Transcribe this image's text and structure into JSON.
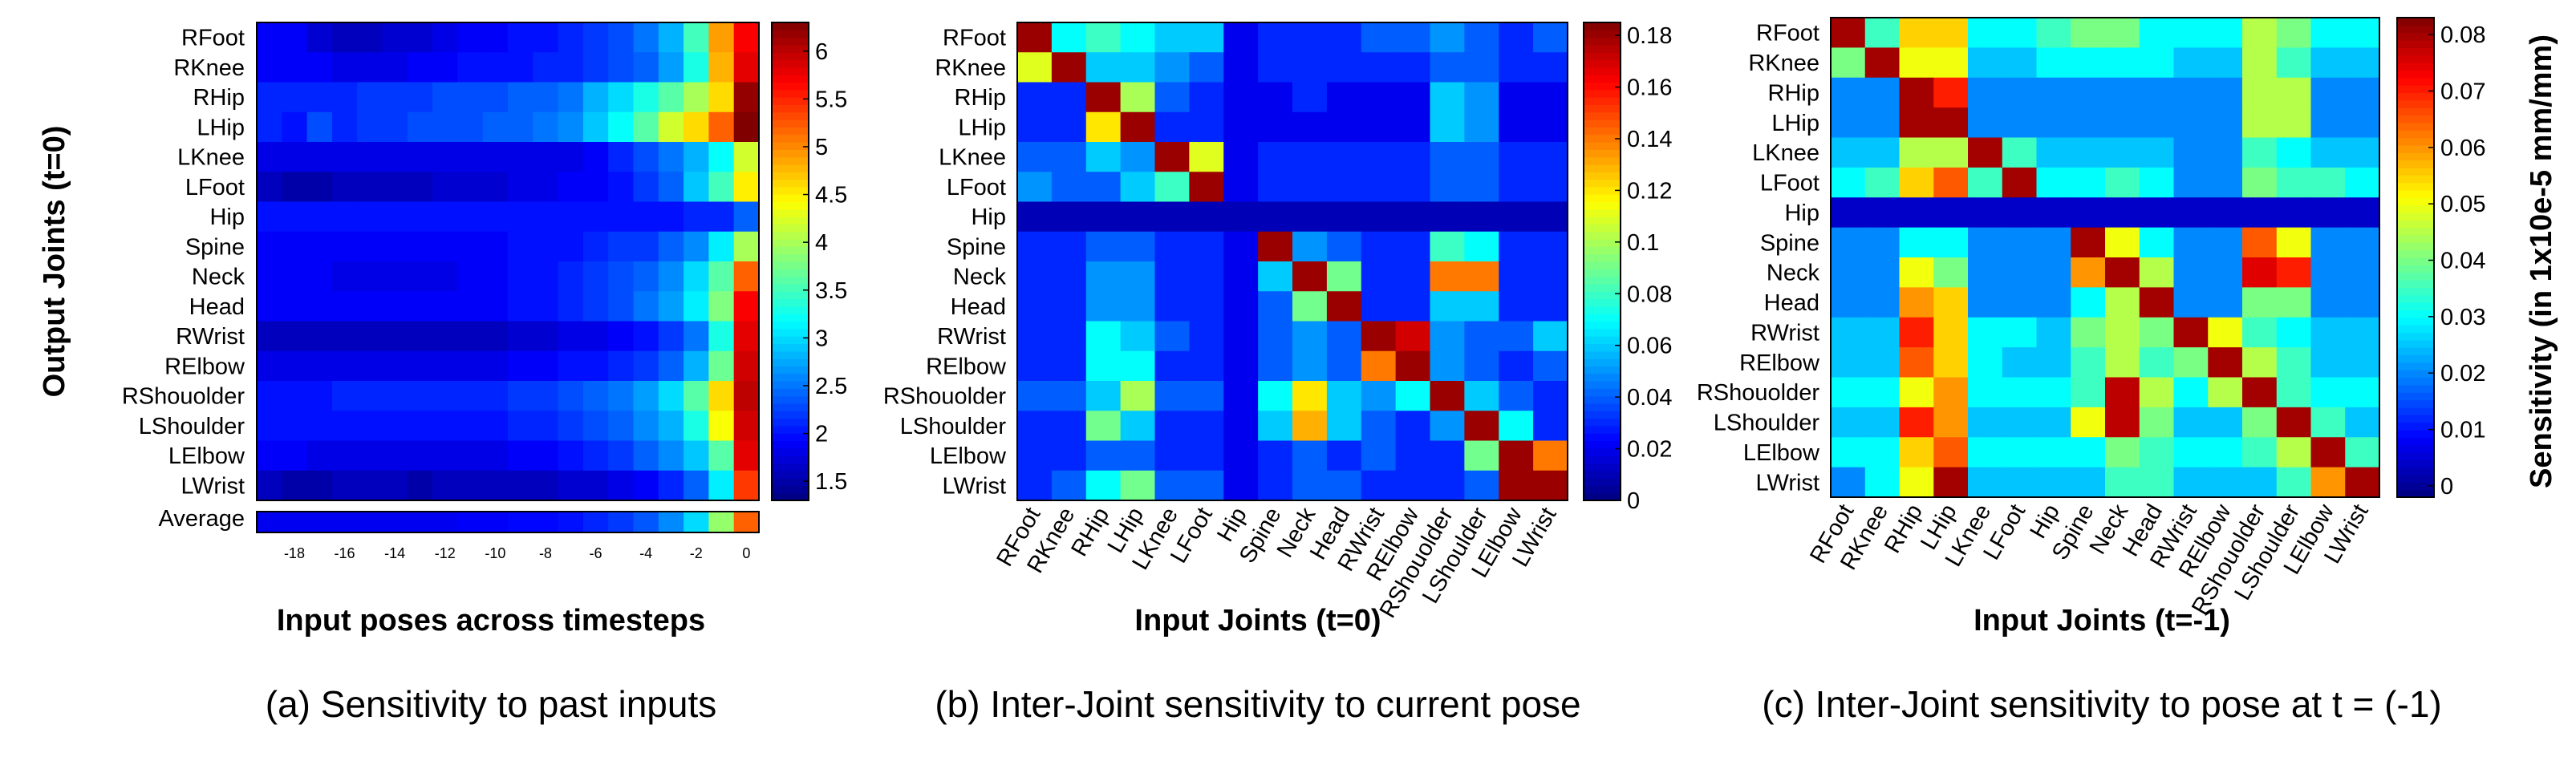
{
  "chart_data": [
    {
      "panel": "a",
      "type": "heatmap",
      "caption": "(a) Sensitivity to past inputs",
      "ylabel": "Output Joints (t=0)",
      "xlabel": "Input poses across timesteps",
      "rows": [
        "RFoot",
        "RKnee",
        "RHip",
        "LHip",
        "LKnee",
        "LFoot",
        "Hip",
        "Spine",
        "Neck",
        "Head",
        "RWrist",
        "RElbow",
        "RShouolder",
        "LShoulder",
        "LElbow",
        "LWrist"
      ],
      "x_ticks": [
        -18,
        -16,
        -14,
        -12,
        -10,
        -8,
        -6,
        -4,
        -2,
        0
      ],
      "x_range": [
        -19,
        0
      ],
      "colorbar": {
        "range": [
          1.3,
          6.3
        ],
        "ticks": [
          "1.5",
          "2",
          "2.5",
          "3",
          "3.5",
          "4",
          "4.5",
          "5",
          "5.5",
          "6"
        ]
      },
      "values": [
        [
          1.9,
          1.9,
          1.7,
          1.6,
          1.6,
          1.7,
          1.7,
          1.8,
          1.9,
          1.9,
          2.0,
          2.0,
          2.1,
          2.2,
          2.3,
          2.5,
          2.8,
          3.5,
          4.9,
          5.7
        ],
        [
          1.9,
          1.9,
          1.9,
          1.8,
          1.8,
          1.8,
          1.9,
          1.9,
          2.0,
          2.0,
          2.0,
          2.1,
          2.1,
          2.2,
          2.3,
          2.4,
          2.7,
          3.3,
          4.8,
          5.8
        ],
        [
          2.1,
          2.1,
          2.1,
          2.1,
          2.2,
          2.2,
          2.2,
          2.3,
          2.3,
          2.3,
          2.4,
          2.4,
          2.5,
          2.8,
          3.0,
          3.3,
          3.6,
          4.0,
          4.6,
          6.2
        ],
        [
          2.1,
          2.0,
          2.3,
          2.1,
          2.2,
          2.2,
          2.3,
          2.3,
          2.3,
          2.4,
          2.4,
          2.5,
          2.6,
          2.9,
          3.2,
          3.6,
          4.2,
          4.6,
          5.2,
          6.3
        ],
        [
          1.8,
          1.8,
          1.8,
          1.8,
          1.8,
          1.8,
          1.8,
          1.8,
          1.8,
          1.8,
          1.8,
          1.8,
          1.8,
          1.9,
          2.1,
          2.3,
          2.5,
          2.8,
          3.2,
          4.2
        ],
        [
          1.6,
          1.5,
          1.5,
          1.6,
          1.6,
          1.6,
          1.6,
          1.7,
          1.7,
          1.7,
          1.8,
          1.8,
          1.9,
          1.9,
          2.0,
          2.2,
          2.4,
          2.9,
          3.5,
          4.5
        ],
        [
          2.0,
          2.0,
          2.0,
          2.0,
          2.0,
          2.0,
          2.0,
          2.0,
          2.0,
          2.0,
          2.0,
          2.0,
          2.0,
          2.0,
          2.0,
          2.0,
          2.0,
          2.1,
          2.1,
          2.4
        ],
        [
          1.9,
          1.9,
          1.9,
          1.9,
          1.9,
          1.9,
          1.9,
          1.9,
          1.9,
          1.9,
          2.0,
          2.0,
          2.0,
          2.1,
          2.2,
          2.2,
          2.4,
          2.6,
          3.1,
          4.0
        ],
        [
          1.9,
          1.9,
          1.9,
          1.8,
          1.8,
          1.8,
          1.8,
          1.8,
          1.9,
          1.9,
          2.0,
          2.0,
          2.1,
          2.2,
          2.3,
          2.4,
          2.6,
          3.0,
          3.6,
          5.2
        ],
        [
          1.9,
          1.9,
          1.9,
          1.9,
          1.9,
          1.9,
          1.9,
          1.9,
          1.9,
          1.9,
          2.0,
          2.0,
          2.1,
          2.2,
          2.3,
          2.5,
          2.7,
          3.1,
          3.8,
          5.7
        ],
        [
          1.6,
          1.6,
          1.6,
          1.6,
          1.6,
          1.6,
          1.6,
          1.6,
          1.6,
          1.6,
          1.7,
          1.7,
          1.8,
          1.8,
          1.9,
          2.0,
          2.2,
          2.5,
          3.3,
          5.8
        ],
        [
          1.8,
          1.8,
          1.8,
          1.8,
          1.8,
          1.8,
          1.8,
          1.8,
          1.8,
          1.8,
          1.9,
          1.9,
          2.0,
          2.0,
          2.1,
          2.2,
          2.4,
          2.8,
          3.7,
          5.9
        ],
        [
          2.0,
          2.0,
          2.0,
          2.1,
          2.1,
          2.1,
          2.1,
          2.1,
          2.1,
          2.1,
          2.2,
          2.2,
          2.3,
          2.4,
          2.5,
          2.7,
          3.0,
          3.6,
          4.6,
          6.0
        ],
        [
          2.0,
          2.0,
          2.0,
          2.0,
          2.0,
          2.0,
          2.0,
          2.0,
          2.0,
          2.0,
          2.1,
          2.1,
          2.2,
          2.3,
          2.4,
          2.6,
          2.8,
          3.3,
          4.4,
          5.9
        ],
        [
          1.9,
          1.9,
          1.8,
          1.8,
          1.8,
          1.8,
          1.8,
          1.8,
          1.8,
          1.8,
          1.9,
          1.9,
          2.0,
          2.1,
          2.2,
          2.4,
          2.6,
          2.9,
          3.6,
          5.8
        ],
        [
          1.6,
          1.5,
          1.5,
          1.6,
          1.6,
          1.6,
          1.5,
          1.6,
          1.6,
          1.6,
          1.6,
          1.6,
          1.7,
          1.7,
          1.8,
          1.9,
          2.1,
          2.4,
          3.1,
          5.4
        ]
      ],
      "average_label": "Average",
      "average_values": [
        1.85,
        1.85,
        1.85,
        1.85,
        1.85,
        1.85,
        1.85,
        1.85,
        1.9,
        1.9,
        1.95,
        1.95,
        2.0,
        2.1,
        2.2,
        2.35,
        2.6,
        3.0,
        3.9,
        5.2
      ]
    },
    {
      "panel": "b",
      "type": "heatmap",
      "caption": "(b) Inter-Joint sensitivity to current pose",
      "xlabel": "Input Joints (t=0)",
      "rows": [
        "RFoot",
        "RKnee",
        "RHip",
        "LHip",
        "LKnee",
        "LFoot",
        "Hip",
        "Spine",
        "Neck",
        "Head",
        "RWrist",
        "RElbow",
        "RShouolder",
        "LShoulder",
        "LElbow",
        "LWrist"
      ],
      "columns": [
        "RFoot",
        "RKnee",
        "RHip",
        "LHip",
        "LKnee",
        "LFoot",
        "Hip",
        "Spine",
        "Neck",
        "Head",
        "RWrist",
        "RElbow",
        "RShouolder",
        "LShoulder",
        "LElbow",
        "LWrist"
      ],
      "colorbar": {
        "range": [
          0,
          0.185
        ],
        "ticks": [
          "0",
          "0.02",
          "0.04",
          "0.06",
          "0.08",
          "0.1",
          "0.12",
          "0.14",
          "0.16",
          "0.18"
        ]
      },
      "values": [
        [
          0.18,
          0.07,
          0.08,
          0.07,
          0.06,
          0.06,
          0.02,
          0.03,
          0.03,
          0.03,
          0.04,
          0.04,
          0.05,
          0.04,
          0.03,
          0.04
        ],
        [
          0.11,
          0.18,
          0.06,
          0.06,
          0.05,
          0.04,
          0.02,
          0.03,
          0.03,
          0.03,
          0.03,
          0.03,
          0.04,
          0.04,
          0.03,
          0.03
        ],
        [
          0.03,
          0.03,
          0.18,
          0.1,
          0.04,
          0.03,
          0.02,
          0.02,
          0.03,
          0.02,
          0.02,
          0.02,
          0.06,
          0.05,
          0.02,
          0.02
        ],
        [
          0.03,
          0.03,
          0.12,
          0.18,
          0.03,
          0.03,
          0.02,
          0.02,
          0.02,
          0.02,
          0.02,
          0.02,
          0.06,
          0.05,
          0.02,
          0.02
        ],
        [
          0.04,
          0.04,
          0.06,
          0.05,
          0.18,
          0.11,
          0.02,
          0.03,
          0.03,
          0.03,
          0.03,
          0.03,
          0.04,
          0.04,
          0.03,
          0.03
        ],
        [
          0.05,
          0.04,
          0.04,
          0.06,
          0.08,
          0.18,
          0.02,
          0.03,
          0.03,
          0.03,
          0.03,
          0.03,
          0.04,
          0.04,
          0.03,
          0.03
        ],
        [
          0.01,
          0.01,
          0.01,
          0.01,
          0.01,
          0.01,
          0.01,
          0.01,
          0.01,
          0.01,
          0.01,
          0.01,
          0.01,
          0.01,
          0.01,
          0.01
        ],
        [
          0.03,
          0.03,
          0.04,
          0.04,
          0.03,
          0.03,
          0.02,
          0.18,
          0.05,
          0.04,
          0.03,
          0.03,
          0.08,
          0.07,
          0.03,
          0.03
        ],
        [
          0.03,
          0.03,
          0.05,
          0.05,
          0.03,
          0.03,
          0.02,
          0.06,
          0.18,
          0.09,
          0.03,
          0.03,
          0.14,
          0.14,
          0.03,
          0.03
        ],
        [
          0.03,
          0.03,
          0.05,
          0.05,
          0.03,
          0.03,
          0.02,
          0.04,
          0.09,
          0.18,
          0.03,
          0.03,
          0.06,
          0.06,
          0.03,
          0.03
        ],
        [
          0.03,
          0.03,
          0.07,
          0.06,
          0.04,
          0.03,
          0.02,
          0.04,
          0.05,
          0.04,
          0.18,
          0.17,
          0.05,
          0.04,
          0.04,
          0.06
        ],
        [
          0.03,
          0.03,
          0.07,
          0.07,
          0.03,
          0.03,
          0.02,
          0.04,
          0.05,
          0.04,
          0.14,
          0.18,
          0.05,
          0.04,
          0.03,
          0.04
        ],
        [
          0.04,
          0.04,
          0.06,
          0.1,
          0.04,
          0.04,
          0.02,
          0.07,
          0.12,
          0.06,
          0.05,
          0.07,
          0.18,
          0.06,
          0.04,
          0.03
        ],
        [
          0.03,
          0.03,
          0.09,
          0.06,
          0.03,
          0.03,
          0.02,
          0.06,
          0.13,
          0.06,
          0.04,
          0.03,
          0.05,
          0.18,
          0.07,
          0.03
        ],
        [
          0.03,
          0.03,
          0.04,
          0.04,
          0.03,
          0.03,
          0.02,
          0.03,
          0.04,
          0.03,
          0.04,
          0.03,
          0.03,
          0.09,
          0.18,
          0.14
        ],
        [
          0.03,
          0.04,
          0.07,
          0.09,
          0.04,
          0.04,
          0.02,
          0.03,
          0.04,
          0.04,
          0.03,
          0.03,
          0.03,
          0.04,
          0.18,
          0.18
        ]
      ]
    },
    {
      "panel": "c",
      "type": "heatmap",
      "caption": "(c) Inter-Joint sensitivity to pose at t = (-1)",
      "xlabel": "Input Joints (t=-1)",
      "colorbar_label": "Sensitivity (in 1x10e-5 mm/mm)",
      "rows": [
        "RFoot",
        "RKnee",
        "RHip",
        "LHip",
        "LKnee",
        "LFoot",
        "Hip",
        "Spine",
        "Neck",
        "Head",
        "RWrist",
        "RElbow",
        "RShouolder",
        "LShoulder",
        "LElbow",
        "LWrist"
      ],
      "columns": [
        "RFoot",
        "RKnee",
        "RHip",
        "LHip",
        "LKnee",
        "LFoot",
        "Hip",
        "Spine",
        "Neck",
        "Head",
        "RWrist",
        "RElbow",
        "RShouolder",
        "LShoulder",
        "LElbow",
        "LWrist"
      ],
      "colorbar": {
        "range": [
          -0.002,
          0.083
        ],
        "ticks": [
          "0",
          "0.01",
          "0.02",
          "0.03",
          "0.04",
          "0.05",
          "0.06",
          "0.07",
          "0.08"
        ]
      },
      "values": [
        [
          0.08,
          0.035,
          0.055,
          0.055,
          0.03,
          0.03,
          0.035,
          0.04,
          0.04,
          0.03,
          0.03,
          0.03,
          0.045,
          0.04,
          0.03,
          0.03
        ],
        [
          0.04,
          0.08,
          0.05,
          0.05,
          0.025,
          0.025,
          0.03,
          0.03,
          0.03,
          0.03,
          0.025,
          0.025,
          0.045,
          0.035,
          0.025,
          0.025
        ],
        [
          0.02,
          0.02,
          0.08,
          0.07,
          0.02,
          0.02,
          0.02,
          0.02,
          0.02,
          0.02,
          0.02,
          0.02,
          0.045,
          0.045,
          0.02,
          0.02
        ],
        [
          0.02,
          0.02,
          0.08,
          0.08,
          0.02,
          0.02,
          0.02,
          0.02,
          0.02,
          0.02,
          0.02,
          0.02,
          0.045,
          0.045,
          0.02,
          0.02
        ],
        [
          0.025,
          0.025,
          0.045,
          0.045,
          0.08,
          0.035,
          0.025,
          0.025,
          0.025,
          0.025,
          0.02,
          0.02,
          0.035,
          0.03,
          0.025,
          0.025
        ],
        [
          0.03,
          0.035,
          0.055,
          0.065,
          0.035,
          0.08,
          0.03,
          0.03,
          0.035,
          0.03,
          0.02,
          0.02,
          0.04,
          0.035,
          0.035,
          0.03
        ],
        [
          0.004,
          0.004,
          0.004,
          0.004,
          0.004,
          0.004,
          0.004,
          0.004,
          0.004,
          0.004,
          0.004,
          0.004,
          0.004,
          0.004,
          0.004,
          0.004
        ],
        [
          0.02,
          0.02,
          0.03,
          0.03,
          0.02,
          0.02,
          0.02,
          0.08,
          0.05,
          0.03,
          0.02,
          0.02,
          0.065,
          0.05,
          0.02,
          0.02
        ],
        [
          0.02,
          0.02,
          0.05,
          0.04,
          0.02,
          0.02,
          0.02,
          0.06,
          0.08,
          0.045,
          0.02,
          0.02,
          0.075,
          0.07,
          0.02,
          0.02
        ],
        [
          0.02,
          0.02,
          0.06,
          0.055,
          0.02,
          0.02,
          0.02,
          0.03,
          0.045,
          0.08,
          0.02,
          0.02,
          0.04,
          0.04,
          0.02,
          0.02
        ],
        [
          0.025,
          0.025,
          0.07,
          0.055,
          0.03,
          0.03,
          0.025,
          0.04,
          0.045,
          0.04,
          0.08,
          0.05,
          0.035,
          0.03,
          0.025,
          0.025
        ],
        [
          0.025,
          0.025,
          0.065,
          0.055,
          0.03,
          0.025,
          0.025,
          0.035,
          0.045,
          0.035,
          0.04,
          0.08,
          0.045,
          0.035,
          0.025,
          0.025
        ],
        [
          0.03,
          0.03,
          0.05,
          0.06,
          0.03,
          0.03,
          0.03,
          0.035,
          0.078,
          0.045,
          0.03,
          0.045,
          0.08,
          0.035,
          0.03,
          0.03
        ],
        [
          0.025,
          0.025,
          0.07,
          0.06,
          0.025,
          0.025,
          0.025,
          0.05,
          0.078,
          0.04,
          0.025,
          0.025,
          0.04,
          0.08,
          0.035,
          0.025
        ],
        [
          0.03,
          0.03,
          0.055,
          0.065,
          0.03,
          0.03,
          0.03,
          0.03,
          0.04,
          0.035,
          0.03,
          0.03,
          0.035,
          0.045,
          0.08,
          0.035
        ],
        [
          0.02,
          0.03,
          0.05,
          0.08,
          0.025,
          0.025,
          0.025,
          0.025,
          0.035,
          0.035,
          0.025,
          0.025,
          0.025,
          0.035,
          0.06,
          0.08
        ]
      ]
    }
  ]
}
